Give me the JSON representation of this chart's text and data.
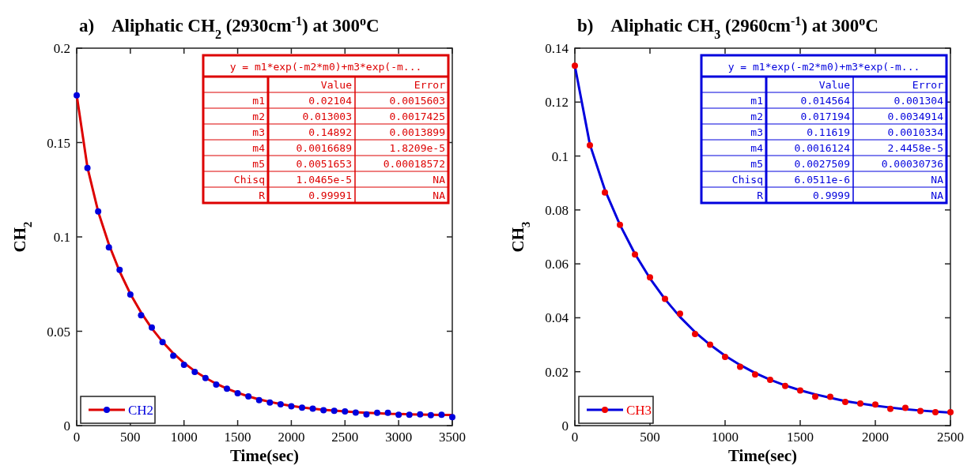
{
  "chart_data": [
    {
      "type": "scatter",
      "title": "a)    Aliphatic CH$_{2}$ (2930cm$^{-1}$) at 300$^{o}$C",
      "xlabel": "Time(sec)",
      "ylabel": "CH$_{2}$",
      "xlim": [
        0,
        3500
      ],
      "xticks": [
        0,
        500,
        1000,
        1500,
        2000,
        2500,
        3000,
        3500
      ],
      "ylim": [
        0,
        0.2
      ],
      "yticks": [
        0,
        0.05,
        0.1,
        0.15,
        0.2
      ],
      "grid": false,
      "legend": "bottom left",
      "series": [
        {
          "type": "line",
          "color": "#dd0000",
          "line_style": "solid",
          "x": [
            0,
            100,
            200,
            300,
            400,
            500,
            600,
            700,
            800,
            900,
            1000,
            1100,
            1200,
            1300,
            1400,
            1500,
            1600,
            1700,
            1800,
            1900,
            2000,
            2100,
            2200,
            2300,
            2400,
            2500,
            2600,
            2700,
            2800,
            2900,
            3000,
            3100,
            3200,
            3300,
            3400,
            3500
          ],
          "values": [
            0.1751,
            0.1369,
            0.1134,
            0.096,
            0.0817,
            0.0698,
            0.0599,
            0.0515,
            0.0444,
            0.0383,
            0.0332,
            0.0289,
            0.0253,
            0.0222,
            0.0196,
            0.0174,
            0.0155,
            0.0139,
            0.0126,
            0.0114,
            0.0105,
            0.0096,
            0.009,
            0.0084,
            0.0079,
            0.0075,
            0.0071,
            0.0068,
            0.0066,
            0.0063,
            0.0062,
            0.006,
            0.0059,
            0.0058,
            0.0057,
            0.0056
          ]
        },
        {
          "name": "CH2",
          "color": "#0000dd",
          "marker": "circle",
          "x": [
            0,
            100,
            200,
            300,
            400,
            500,
            600,
            700,
            800,
            900,
            1000,
            1100,
            1200,
            1300,
            1400,
            1500,
            1600,
            1700,
            1800,
            1900,
            2000,
            2100,
            2200,
            2300,
            2400,
            2500,
            2600,
            2700,
            2800,
            2900,
            3000,
            3100,
            3200,
            3300,
            3400,
            3500
          ],
          "values": [
            0.175,
            0.1365,
            0.1135,
            0.0945,
            0.0825,
            0.0695,
            0.0585,
            0.052,
            0.0442,
            0.037,
            0.0322,
            0.0285,
            0.0252,
            0.0218,
            0.0196,
            0.0172,
            0.0155,
            0.0135,
            0.0122,
            0.0113,
            0.0102,
            0.0095,
            0.009,
            0.0082,
            0.0078,
            0.0075,
            0.0069,
            0.006,
            0.0068,
            0.0068,
            0.0058,
            0.0058,
            0.006,
            0.0055,
            0.0058,
            0.0045
          ]
        }
      ],
      "annotations": [
        "y = m1*exp(-m2*m0)+m3*exp(-m...",
        "Value",
        "Error",
        "m1",
        "0.02104",
        "0.0015603",
        "m2",
        "0.013003",
        "0.0017425",
        "m3",
        "0.14892",
        "0.0013899",
        "m4",
        "0.0016689",
        "1.8209e-5",
        "m5",
        "0.0051653",
        "0.00018572",
        "Chisq",
        "1.0465e-5",
        "NA",
        "R",
        "0.99991",
        "NA"
      ]
    },
    {
      "type": "scatter",
      "title": "b)    Aliphatic CH$_{3}$ (2960cm$^{-1}$) at 300$^{o}$C",
      "xlabel": "Time(sec)",
      "ylabel": "CH$_{3}$",
      "xlim": [
        0,
        2500
      ],
      "xticks": [
        0,
        500,
        1000,
        1500,
        2000,
        2500
      ],
      "ylim": [
        0,
        0.14
      ],
      "yticks": [
        0,
        0.02,
        0.04,
        0.06,
        0.08,
        0.1,
        0.12,
        0.14
      ],
      "grid": false,
      "legend": "bottom left",
      "series": [
        {
          "type": "line",
          "color": "#0000dd",
          "line_style": "solid",
          "x": [
            0,
            100,
            200,
            300,
            400,
            500,
            600,
            700,
            800,
            900,
            1000,
            1100,
            1200,
            1300,
            1400,
            1500,
            1600,
            1700,
            1800,
            1900,
            2000,
            2100,
            2200,
            2300,
            2400,
            2500
          ],
          "values": [
            0.1335,
            0.1043,
            0.0874,
            0.0745,
            0.0637,
            0.0546,
            0.0469,
            0.0403,
            0.0347,
            0.03,
            0.0259,
            0.0225,
            0.0195,
            0.017,
            0.0149,
            0.0131,
            0.0116,
            0.0103,
            0.0091,
            0.0082,
            0.0074,
            0.0067,
            0.0061,
            0.0056,
            0.0052,
            0.0048
          ]
        },
        {
          "name": "CH3",
          "color": "#ee0000",
          "marker": "circle",
          "x": [
            0,
            100,
            200,
            300,
            400,
            500,
            600,
            700,
            800,
            900,
            1000,
            1100,
            1200,
            1300,
            1400,
            1500,
            1600,
            1700,
            1800,
            1900,
            2000,
            2100,
            2200,
            2300,
            2400,
            2500
          ],
          "values": [
            0.1335,
            0.104,
            0.0865,
            0.0745,
            0.0635,
            0.055,
            0.047,
            0.0415,
            0.034,
            0.03,
            0.0255,
            0.0218,
            0.019,
            0.017,
            0.0147,
            0.013,
            0.0108,
            0.0107,
            0.0088,
            0.0082,
            0.0078,
            0.0062,
            0.0066,
            0.0054,
            0.005,
            0.005
          ]
        }
      ],
      "annotations": [
        "y = m1*exp(-m2*m0)+m3*exp(-m...",
        "Value",
        "Error",
        "m1",
        "0.014564",
        "0.001304",
        "m2",
        "0.017194",
        "0.0034914",
        "m3",
        "0.11619",
        "0.0010334",
        "m4",
        "0.0016124",
        "2.4458e-5",
        "m5",
        "0.0027509",
        "0.00030736",
        "Chisq",
        "6.0511e-6",
        "NA",
        "R",
        "0.9999",
        "NA"
      ]
    }
  ]
}
